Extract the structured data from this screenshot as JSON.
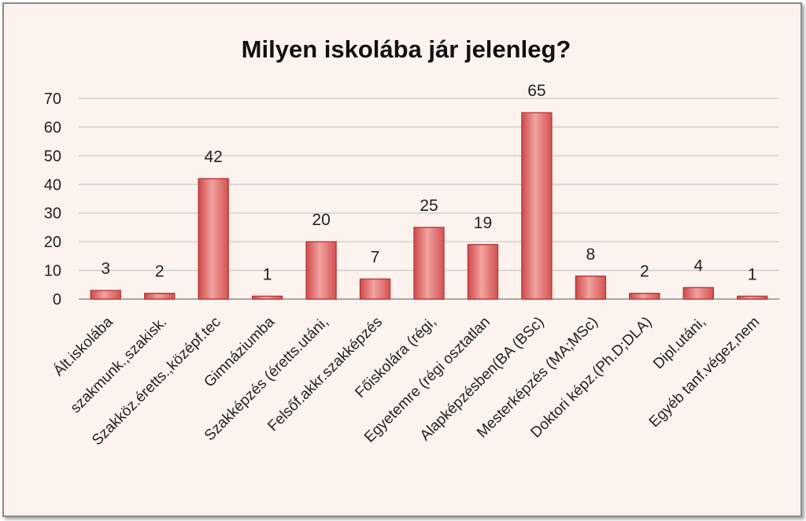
{
  "chart_data": {
    "type": "bar",
    "title": "Milyen iskolába jár jelenleg?",
    "categories": [
      "Ált.iskolába",
      "szakmunk.,szakisk.",
      "Szakköz.éretts.,középf.tec",
      "Gimnáziumba",
      "Szakképzés (éretts.utáni,",
      "Felsőf.akkr.szakképzés",
      "Főiskolára (régi,",
      "Egyetemre (régi osztatlan",
      "Alapképzésben(BA (BSc)",
      "Mesterképzés (MA;MSc)",
      "Doktori képz.(Ph.D;DLA)",
      "Dipl.utáni,",
      "Egyéb tanf.végez,nem"
    ],
    "values": [
      3,
      2,
      42,
      1,
      20,
      7,
      25,
      19,
      65,
      8,
      2,
      4,
      1
    ],
    "ylim": [
      0,
      70
    ],
    "yticks": [
      0,
      10,
      20,
      30,
      40,
      50,
      60,
      70
    ],
    "xlabel": "",
    "ylabel": "",
    "grid": true,
    "bar_color": "#e87a78"
  }
}
